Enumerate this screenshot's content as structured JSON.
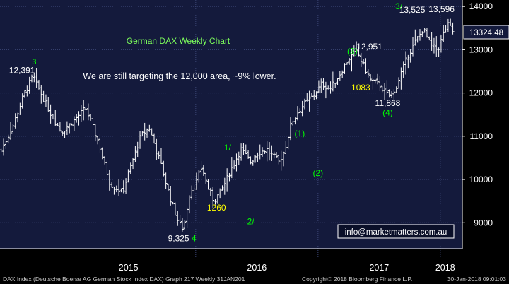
{
  "chart_data": {
    "type": "ohlc",
    "title": "German DAX Weekly Chart",
    "subtitle": "We are still targeting the 12,000 area, ~9% lower.",
    "y_ticks": [
      9000,
      10000,
      11000,
      12000,
      13000,
      14000
    ],
    "y_tick_labels": [
      "9000",
      "10000",
      "11000",
      "12000",
      "13000",
      "14000"
    ],
    "ylim": [
      8400,
      14150
    ],
    "x_labels": [
      {
        "text": "2015",
        "x": 2015.45
      },
      {
        "text": "2016",
        "x": 2016.5
      },
      {
        "text": "2017",
        "x": 2017.5
      },
      {
        "text": "2018",
        "x": 2018.04
      }
    ],
    "year_boundaries": [
      2016.0,
      2017.0,
      2018.0
    ],
    "xlim": [
      2014.4,
      2018.18
    ],
    "last_price_label": "13324.48",
    "last_price_value": 13324.48,
    "anchors": [
      [
        2014.41,
        10680
      ],
      [
        2014.5,
        11200
      ],
      [
        2014.6,
        12000
      ],
      [
        2014.67,
        12391
      ],
      [
        2014.8,
        11600
      ],
      [
        2014.9,
        11100
      ],
      [
        2015.0,
        11350
      ],
      [
        2015.1,
        11650
      ],
      [
        2015.2,
        10900
      ],
      [
        2015.3,
        9900
      ],
      [
        2015.4,
        9700
      ],
      [
        2015.48,
        10400
      ],
      [
        2015.55,
        11000
      ],
      [
        2015.62,
        11200
      ],
      [
        2015.72,
        10300
      ],
      [
        2015.8,
        9500
      ],
      [
        2015.86,
        9000
      ],
      [
        2015.9,
        8850
      ],
      [
        2015.95,
        9700
      ],
      [
        2016.0,
        9900
      ],
      [
        2016.05,
        10300
      ],
      [
        2016.1,
        9800
      ],
      [
        2016.15,
        9500
      ],
      [
        2016.22,
        9800
      ],
      [
        2016.3,
        10300
      ],
      [
        2016.37,
        10700
      ],
      [
        2016.45,
        10400
      ],
      [
        2016.5,
        10600
      ],
      [
        2016.58,
        10700
      ],
      [
        2016.68,
        10400
      ],
      [
        2016.73,
        10700
      ],
      [
        2016.78,
        11300
      ],
      [
        2016.87,
        11700
      ],
      [
        2016.95,
        11900
      ],
      [
        2017.03,
        12200
      ],
      [
        2017.1,
        12100
      ],
      [
        2017.17,
        12400
      ],
      [
        2017.25,
        12800
      ],
      [
        2017.32,
        12951
      ],
      [
        2017.36,
        12700
      ],
      [
        2017.43,
        12300
      ],
      [
        2017.5,
        12200
      ],
      [
        2017.57,
        11950
      ],
      [
        2017.62,
        11990
      ],
      [
        2017.67,
        12400
      ],
      [
        2017.74,
        12900
      ],
      [
        2017.8,
        13200
      ],
      [
        2017.86,
        13480
      ],
      [
        2017.92,
        13100
      ],
      [
        2017.98,
        13000
      ],
      [
        2018.03,
        13400
      ],
      [
        2018.07,
        13596
      ],
      [
        2018.12,
        13324
      ]
    ],
    "annotations": [
      {
        "text": "3",
        "x": 2014.68,
        "y": 12660,
        "color": "#00ff00",
        "size": 11
      },
      {
        "text": "12,391",
        "x": 2014.58,
        "y": 12460,
        "color": "#ffffff",
        "size": 12
      },
      {
        "text": "9,325",
        "x": 2015.86,
        "y": 8570,
        "color": "#ffffff",
        "size": 12
      },
      {
        "text": "4",
        "x": 2015.985,
        "y": 8570,
        "color": "#00ff00",
        "size": 12
      },
      {
        "text": "1/",
        "x": 2016.26,
        "y": 10670,
        "color": "#00ff00",
        "size": 12
      },
      {
        "text": "1260",
        "x": 2016.17,
        "y": 9280,
        "color": "#ffff00",
        "size": 12
      },
      {
        "text": "2/",
        "x": 2016.45,
        "y": 8960,
        "color": "#00ff00",
        "size": 12
      },
      {
        "text": "(1)",
        "x": 2016.85,
        "y": 11000,
        "color": "#00ff00",
        "size": 12
      },
      {
        "text": "(2)",
        "x": 2017.0,
        "y": 10080,
        "color": "#00ff00",
        "size": 12
      },
      {
        "text": "(3)",
        "x": 2017.28,
        "y": 12900,
        "color": "#00ff00",
        "size": 12
      },
      {
        "text": "12,951",
        "x": 2017.42,
        "y": 13010,
        "color": "#ffffff",
        "size": 12
      },
      {
        "text": "1083",
        "x": 2017.35,
        "y": 12060,
        "color": "#ffff00",
        "size": 12
      },
      {
        "text": "11,868",
        "x": 2017.57,
        "y": 11700,
        "color": "#ffffff",
        "size": 12
      },
      {
        "text": "(4)",
        "x": 2017.57,
        "y": 11480,
        "color": "#00ff00",
        "size": 12
      },
      {
        "text": "3/",
        "x": 2017.66,
        "y": 13940,
        "color": "#00ff00",
        "size": 12
      },
      {
        "text": "13,525",
        "x": 2017.77,
        "y": 13860,
        "color": "#ffffff",
        "size": 12
      },
      {
        "text": "13,596",
        "x": 2018.01,
        "y": 13870,
        "color": "#ffffff",
        "size": 12
      }
    ]
  },
  "watermark": "info@marketmatters.com.au",
  "footer": {
    "left": "DAX Index (Deutsche Boerse AG German Stock Index DAX) Graph 217  Weekly 31JAN201",
    "center": "Copyright© 2018 Bloomberg Finance L.P.",
    "right": "30-Jan-2018 09:01:03"
  },
  "colors": {
    "background": "#000000",
    "plot_bg": "#141a3c",
    "grid": "#3b4675",
    "bars": "#ffffff",
    "axis_text": "#ffffff",
    "title": "#7dff5c",
    "annotation_green": "#00ff00",
    "annotation_yellow": "#ffff00"
  }
}
